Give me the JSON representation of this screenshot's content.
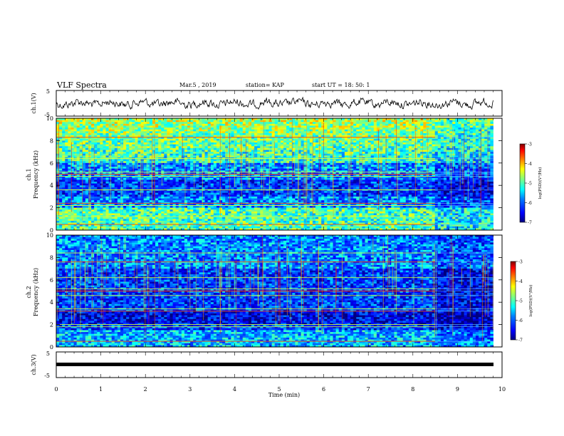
{
  "header": {
    "title": "VLF Spectra",
    "date": "Mar.5 , 2019",
    "station": "station= KAP",
    "start": "start  UT =   18: 50: 1"
  },
  "colors": {
    "scale": [
      "#000080",
      "#0000ff",
      "#0080ff",
      "#00ffff",
      "#80ff80",
      "#ffff00",
      "#ff8000",
      "#ff0000",
      "#800000"
    ],
    "trace": "#000000",
    "axis": "#000000"
  },
  "chart_data": [
    {
      "type": "line",
      "id": "ch1-waveform",
      "ylabel": "ch.1(V)",
      "ylim": [
        -5,
        5
      ],
      "yticks": [
        "5",
        "-5"
      ],
      "xlim": [
        0,
        10
      ],
      "description_values": "noisy voltage trace fluctuating roughly between -2 and 2 V"
    },
    {
      "type": "heatmap",
      "id": "ch1-spectrogram",
      "ylabel": "ch.1\nFrequency (kHz)",
      "ylabel_line1": "ch.1",
      "ylabel_line2": "Frequency (kHz)",
      "ylim": [
        0,
        10
      ],
      "yticks": [
        "0",
        "2",
        "4",
        "6",
        "8",
        "10"
      ],
      "xlim": [
        0,
        10
      ],
      "colorbar": {
        "label": "log(PSD)(V²/Hz)",
        "range": [
          -7,
          -3
        ],
        "ticks": [
          "-3",
          "-4",
          "-5",
          "-6",
          "-7"
        ]
      },
      "change_time_min": 8.5,
      "lines_khz": [
        0.5,
        1.2,
        2.2,
        2.4,
        3.6,
        4.8,
        5.0,
        5.2,
        6.4,
        8.3
      ]
    },
    {
      "type": "heatmap",
      "id": "ch2-spectrogram",
      "ylabel_line1": "ch.2",
      "ylabel_line2": "Frequency (kHz)",
      "ylim": [
        0,
        10
      ],
      "yticks": [
        "0",
        "2",
        "4",
        "6",
        "8",
        "10"
      ],
      "xlim": [
        0,
        10
      ],
      "colorbar": {
        "label": "log(PSD)(V²/Hz)",
        "range": [
          -7,
          -3
        ],
        "ticks": [
          "-3",
          "-4",
          "-5",
          "-6",
          "-7"
        ]
      },
      "change_time_min": 8.5,
      "lines_khz": [
        0.5,
        1.8,
        2.0,
        3.2,
        3.4,
        4.6,
        5.0,
        5.2,
        6.2,
        7.6,
        8.4
      ]
    },
    {
      "type": "line",
      "id": "ch3-waveform",
      "ylabel": "ch.3(V)",
      "ylim": [
        -5,
        5
      ],
      "yticks": [
        "5",
        "-5"
      ],
      "xlim": [
        0,
        10
      ],
      "value": -1
    }
  ],
  "xaxis": {
    "label": "Time (min)",
    "ticks": [
      "0",
      "1",
      "2",
      "3",
      "4",
      "5",
      "6",
      "7",
      "8",
      "9",
      "10"
    ]
  }
}
